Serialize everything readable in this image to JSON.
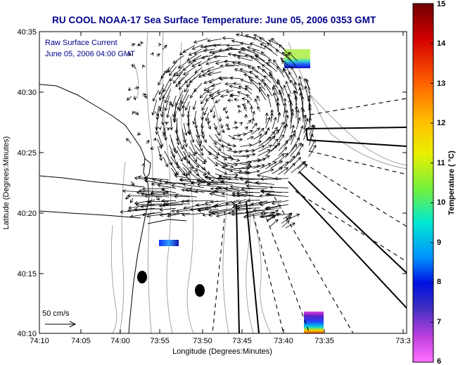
{
  "title": "RU COOL  NOAA-17  Sea Surface Temperature:  June 05, 2006 0353 GMT",
  "legend": {
    "line1": "Raw Surface Current",
    "line2": "June 05, 2006 04:00 GMT",
    "scale_label": "50 cm/s"
  },
  "axes": {
    "xlabel": "Longitude (Degrees:Minutes)",
    "ylabel": "Latitude (Degrees:Minutes)",
    "xticks": [
      "74:10",
      "74:05",
      "74:00",
      "73:55",
      "73:50",
      "73:45",
      "73:40",
      "73:35",
      "73:3"
    ],
    "yticks": [
      "40:35",
      "40:30",
      "40:25",
      "40:20",
      "40:15",
      "40:10"
    ]
  },
  "colorbar": {
    "label": "Temperature ( °C)",
    "min": 6,
    "max": 15,
    "ticks": [
      "15",
      "14",
      "13",
      "12",
      "11",
      "10",
      "9",
      "8",
      "7",
      "6"
    ]
  },
  "colors": {
    "title": "#00008b",
    "arrows": "#000000",
    "bathymetry": "#9a9a9a"
  }
}
